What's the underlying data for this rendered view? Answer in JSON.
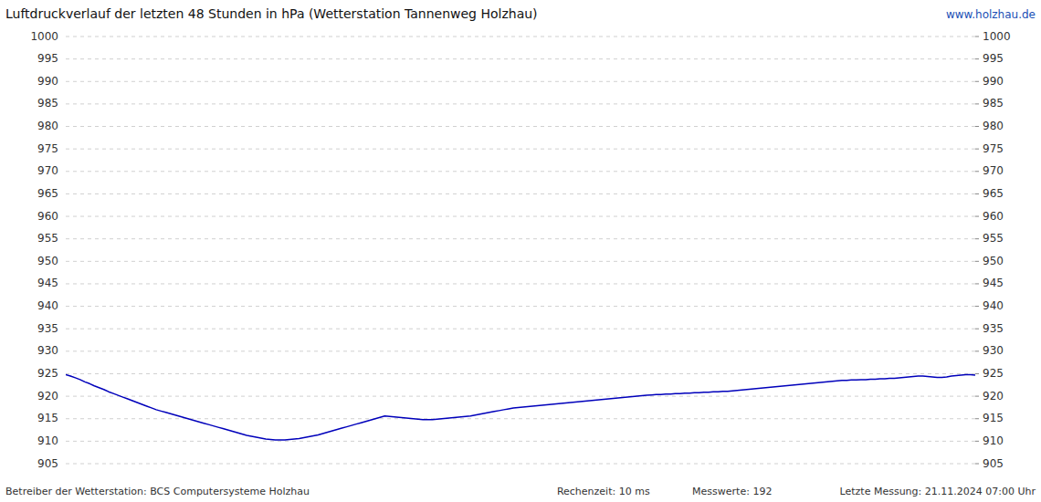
{
  "chart_data": {
    "type": "line",
    "title": "Luftdruckverlauf der letzten 48 Stunden in hPa (Wetterstation Tannenweg Holzhau)",
    "annotations": [
      "www.holzhau.de",
      "Betreiber der Wetterstation: BCS Computersysteme Holzhau",
      "Rechenzeit: 10 ms",
      "Messwerte: 192",
      "Letzte Messung: 21.11.2024 07:00 Uhr"
    ],
    "color": "#0000bb",
    "ylim": [
      905,
      1000
    ],
    "yticks": [
      905,
      910,
      915,
      920,
      925,
      930,
      935,
      940,
      945,
      950,
      955,
      960,
      965,
      970,
      975,
      980,
      985,
      990,
      995,
      1000
    ],
    "y2lim": [
      905,
      1000
    ],
    "y2ticks": [
      905,
      910,
      915,
      920,
      925,
      930,
      935,
      940,
      945,
      950,
      955,
      960,
      965,
      970,
      975,
      980,
      985,
      990,
      995,
      1000
    ],
    "grid": true,
    "tick_labels": "y",
    "values": [
      924.8,
      924.5,
      924.1,
      923.7,
      923.2,
      922.8,
      922.3,
      921.9,
      921.5,
      921.0,
      920.6,
      920.2,
      919.8,
      919.4,
      919.0,
      918.6,
      918.2,
      917.8,
      917.4,
      917.0,
      916.7,
      916.4,
      916.1,
      915.8,
      915.5,
      915.2,
      914.9,
      914.6,
      914.3,
      914.0,
      913.7,
      913.4,
      913.1,
      912.8,
      912.5,
      912.2,
      911.9,
      911.6,
      911.3,
      911.1,
      910.9,
      910.7,
      910.5,
      910.4,
      910.3,
      910.3,
      910.3,
      910.4,
      910.5,
      910.6,
      910.8,
      911.0,
      911.2,
      911.4,
      911.7,
      912.0,
      912.3,
      912.6,
      912.9,
      913.2,
      913.5,
      913.8,
      914.1,
      914.4,
      914.7,
      915.0,
      915.3,
      915.6,
      915.5,
      915.4,
      915.3,
      915.2,
      915.1,
      915.0,
      914.9,
      914.8,
      914.8,
      914.8,
      914.9,
      915.0,
      915.1,
      915.2,
      915.3,
      915.4,
      915.5,
      915.6,
      915.8,
      916.0,
      916.2,
      916.4,
      916.6,
      916.8,
      917.0,
      917.2,
      917.4,
      917.5,
      917.6,
      917.7,
      917.8,
      917.9,
      918.0,
      918.1,
      918.2,
      918.3,
      918.4,
      918.5,
      918.6,
      918.7,
      918.8,
      918.9,
      919.0,
      919.1,
      919.2,
      919.3,
      919.4,
      919.5,
      919.6,
      919.7,
      919.8,
      919.9,
      920.0,
      920.1,
      920.2,
      920.3,
      920.4,
      920.4,
      920.5,
      920.5,
      920.6,
      920.6,
      920.7,
      920.7,
      920.8,
      920.8,
      920.9,
      920.9,
      921.0,
      921.0,
      921.1,
      921.1,
      921.2,
      921.3,
      921.4,
      921.5,
      921.6,
      921.7,
      921.8,
      921.9,
      922.0,
      922.1,
      922.2,
      922.3,
      922.4,
      922.5,
      922.6,
      922.7,
      922.8,
      922.9,
      923.0,
      923.1,
      923.2,
      923.3,
      923.4,
      923.5,
      923.5,
      923.6,
      923.6,
      923.7,
      923.7,
      923.8,
      923.8,
      923.9,
      923.9,
      924.0,
      924.0,
      924.1,
      924.2,
      924.3,
      924.4,
      924.5,
      924.5,
      924.4,
      924.3,
      924.2,
      924.2,
      924.3,
      924.5,
      924.6,
      924.7,
      924.8,
      924.8,
      924.7
    ]
  }
}
